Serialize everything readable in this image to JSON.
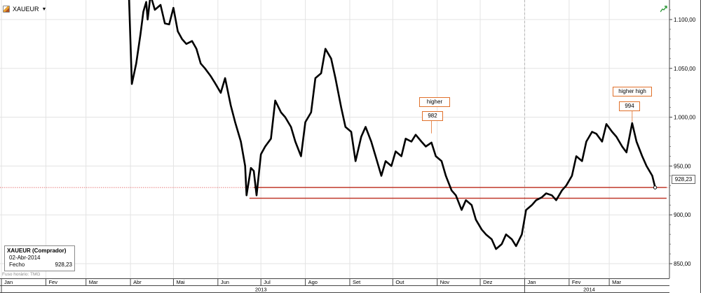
{
  "header": {
    "symbol": "XAUEUR",
    "symbol_icon": "instrument-flag-icon",
    "dropdown_icon": "caret-down-icon",
    "trend_icon": "trend-up-icon"
  },
  "infobox": {
    "title": "XAUEUR (Comprador)",
    "date": "02-Abr-2014",
    "close_label": "Fecho",
    "close_value": "928,23"
  },
  "timezone_note": "Fuso horário: TMG",
  "price_tag": "928,23",
  "annotations": [
    {
      "label": "higher",
      "value": "982",
      "value_num": 982,
      "date": "2013-10-28"
    },
    {
      "label": "higher high",
      "value": "994",
      "value_num": 994,
      "date": "2014-03-17"
    }
  ],
  "colors": {
    "line": "#000000",
    "support": "#c0392b",
    "annotation_border": "#e0702a",
    "grid": "#e3e3e3",
    "axis_text": "#000000"
  },
  "chart_data": {
    "type": "line",
    "title": "",
    "xlabel": "",
    "ylabel": "",
    "ylim": [
      835,
      1120
    ],
    "xlim": [
      "2012-12-31",
      "2014-04-12"
    ],
    "grid": true,
    "y_ticks": [
      850,
      900,
      950,
      1000,
      1050,
      1100
    ],
    "y_tick_labels": [
      "850,00",
      "900,00",
      "950,00",
      "1.000,00",
      "1.050,00",
      "1.100,00"
    ],
    "months": [
      {
        "label": "Jan",
        "date": "2013-01-01"
      },
      {
        "label": "Fev",
        "date": "2013-02-01"
      },
      {
        "label": "Mar",
        "date": "2013-03-01"
      },
      {
        "label": "Abr",
        "date": "2013-04-01"
      },
      {
        "label": "Mai",
        "date": "2013-05-01"
      },
      {
        "label": "Jun",
        "date": "2013-06-01"
      },
      {
        "label": "Jul",
        "date": "2013-07-01"
      },
      {
        "label": "Ago",
        "date": "2013-08-01"
      },
      {
        "label": "Set",
        "date": "2013-09-01"
      },
      {
        "label": "Out",
        "date": "2013-10-01"
      },
      {
        "label": "Nov",
        "date": "2013-11-01"
      },
      {
        "label": "Dez",
        "date": "2013-12-01"
      },
      {
        "label": "Jan",
        "date": "2014-01-01"
      },
      {
        "label": "Fev",
        "date": "2014-02-01"
      },
      {
        "label": "Mar",
        "date": "2014-03-01"
      }
    ],
    "years": [
      {
        "label": "2013",
        "date": "2013-07-01",
        "boundary": "2013-01-01"
      },
      {
        "label": "2014",
        "date": "2014-02-15",
        "boundary": "2014-01-01"
      }
    ],
    "support_lines": [
      {
        "y": 928,
        "x_start": "2013-06-26",
        "x_end": "2014-04-10"
      },
      {
        "y": 917,
        "x_start": "2013-06-23",
        "x_end": "2014-04-10"
      }
    ],
    "series": [
      {
        "x": [
          "2013-03-31",
          "2013-04-02",
          "2013-04-05",
          "2013-04-08",
          "2013-04-10",
          "2013-04-12",
          "2013-04-13",
          "2013-04-15",
          "2013-04-18",
          "2013-04-22",
          "2013-04-25",
          "2013-04-28",
          "2013-05-01",
          "2013-05-04",
          "2013-05-07",
          "2013-05-10",
          "2013-05-14",
          "2013-05-17",
          "2013-05-20",
          "2013-05-23",
          "2013-05-27",
          "2013-05-30",
          "2013-06-03",
          "2013-06-06",
          "2013-06-10",
          "2013-06-13",
          "2013-06-17",
          "2013-06-20",
          "2013-06-21",
          "2013-06-24",
          "2013-06-26",
          "2013-06-28",
          "2013-07-01",
          "2013-07-04",
          "2013-07-08",
          "2013-07-11",
          "2013-07-15",
          "2013-07-18",
          "2013-07-22",
          "2013-07-25",
          "2013-07-29",
          "2013-08-01",
          "2013-08-05",
          "2013-08-08",
          "2013-08-12",
          "2013-08-15",
          "2013-08-19",
          "2013-08-22",
          "2013-08-26",
          "2013-08-29",
          "2013-09-02",
          "2013-09-05",
          "2013-09-09",
          "2013-09-12",
          "2013-09-16",
          "2013-09-19",
          "2013-09-23",
          "2013-09-26",
          "2013-09-30",
          "2013-10-03",
          "2013-10-07",
          "2013-10-10",
          "2013-10-14",
          "2013-10-17",
          "2013-10-21",
          "2013-10-24",
          "2013-10-28",
          "2013-10-31",
          "2013-11-04",
          "2013-11-07",
          "2013-11-11",
          "2013-11-14",
          "2013-11-18",
          "2013-11-21",
          "2013-11-25",
          "2013-11-28",
          "2013-12-02",
          "2013-12-05",
          "2013-12-09",
          "2013-12-12",
          "2013-12-16",
          "2013-12-19",
          "2013-12-23",
          "2013-12-26",
          "2013-12-30",
          "2014-01-02",
          "2014-01-06",
          "2014-01-09",
          "2014-01-13",
          "2014-01-16",
          "2014-01-20",
          "2014-01-23",
          "2014-01-27",
          "2014-01-30",
          "2014-02-03",
          "2014-02-06",
          "2014-02-10",
          "2014-02-13",
          "2014-02-17",
          "2014-02-20",
          "2014-02-24",
          "2014-02-27",
          "2014-03-03",
          "2014-03-06",
          "2014-03-10",
          "2014-03-13",
          "2014-03-17",
          "2014-03-20",
          "2014-03-24",
          "2014-03-27",
          "2014-03-31",
          "2014-04-02"
        ],
        "y": [
          1123,
          1034,
          1055,
          1085,
          1108,
          1118,
          1100,
          1125,
          1110,
          1115,
          1096,
          1095,
          1112,
          1088,
          1080,
          1075,
          1078,
          1070,
          1055,
          1050,
          1042,
          1035,
          1025,
          1040,
          1012,
          995,
          975,
          950,
          920,
          948,
          945,
          920,
          962,
          970,
          978,
          1017,
          1005,
          1000,
          990,
          975,
          960,
          995,
          1005,
          1040,
          1045,
          1070,
          1060,
          1040,
          1010,
          990,
          985,
          955,
          980,
          990,
          975,
          960,
          940,
          955,
          950,
          965,
          960,
          978,
          975,
          982,
          975,
          970,
          974,
          960,
          955,
          940,
          925,
          920,
          905,
          915,
          910,
          895,
          885,
          880,
          875,
          865,
          870,
          880,
          875,
          868,
          880,
          905,
          910,
          915,
          918,
          922,
          920,
          915,
          925,
          930,
          940,
          960,
          955,
          975,
          985,
          983,
          975,
          993,
          985,
          980,
          970,
          964,
          994,
          975,
          960,
          950,
          940,
          928
        ]
      }
    ]
  }
}
